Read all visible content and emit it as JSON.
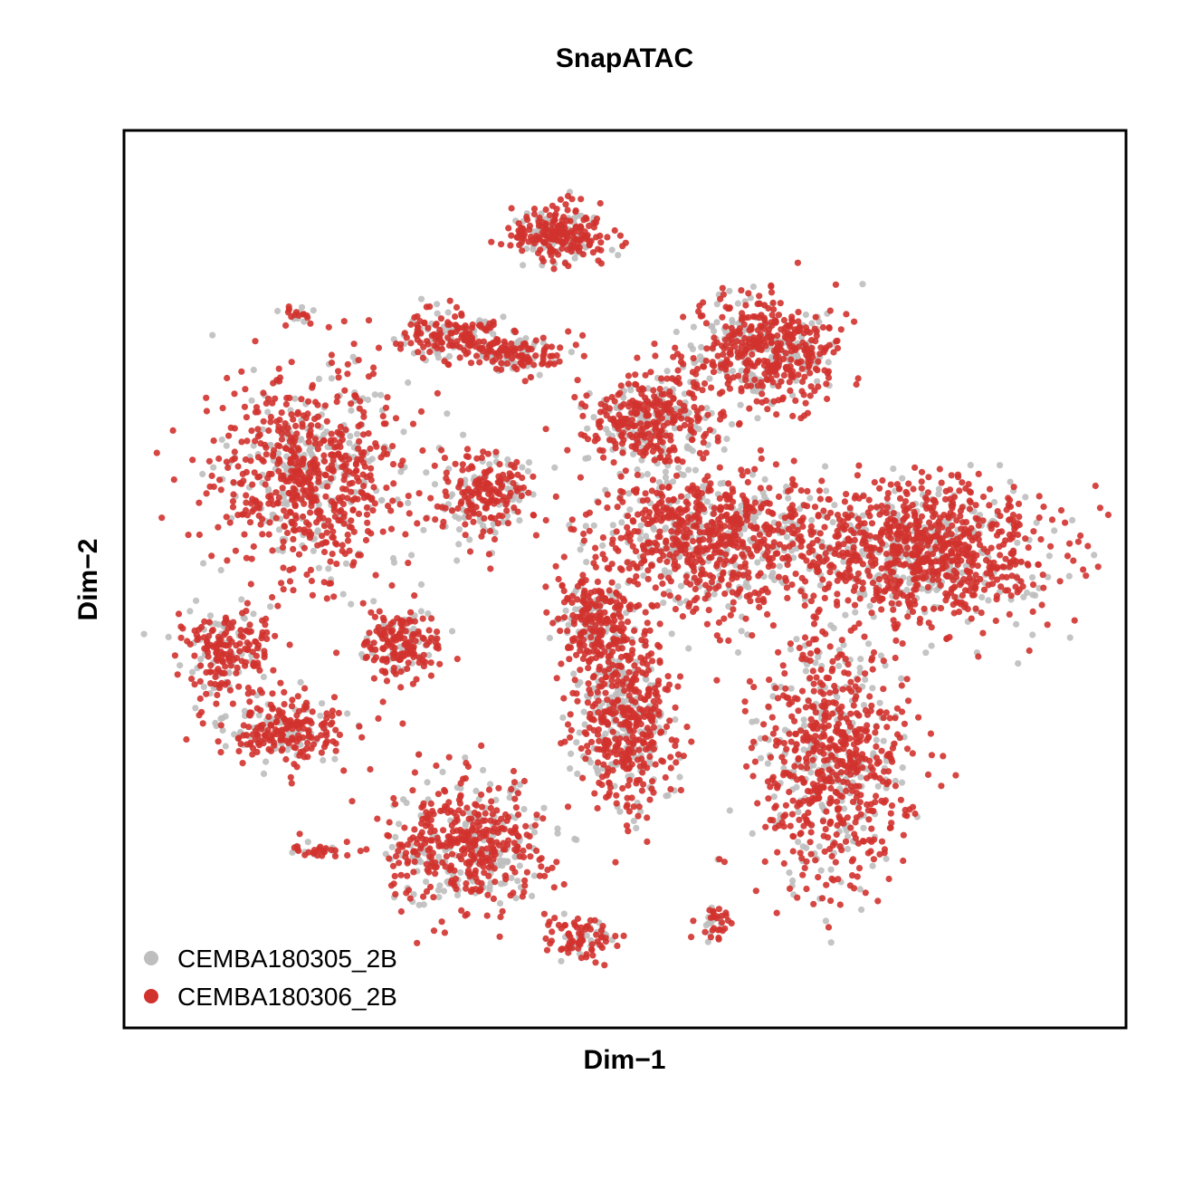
{
  "chart_data": {
    "type": "scatter",
    "title": "SnapATAC",
    "xlabel": "Dim−1",
    "ylabel": "Dim−2",
    "xlim": [
      0,
      100
    ],
    "ylim": [
      0,
      100
    ],
    "grid": false,
    "legend_position": "bottom-left",
    "series": [
      {
        "name": "CEMBA180305_2B",
        "color": "#bebebe"
      },
      {
        "name": "CEMBA180306_2B",
        "color": "#d2322d"
      }
    ],
    "clusters": [
      {
        "x": 43,
        "y": 92,
        "sx": 3.0,
        "sy": 2.0,
        "n": 260
      },
      {
        "x": 15,
        "y": 82,
        "sx": 0.9,
        "sy": 0.7,
        "n": 20
      },
      {
        "x": 31,
        "y": 79.5,
        "sx": 3.5,
        "sy": 1.5,
        "n": 160
      },
      {
        "x": 37.5,
        "y": 77.5,
        "sx": 3.0,
        "sy": 1.5,
        "n": 160
      },
      {
        "x": 65,
        "y": 78,
        "sx": 5.0,
        "sy": 3.8,
        "n": 520
      },
      {
        "x": 52.5,
        "y": 69,
        "sx": 4.0,
        "sy": 3.5,
        "n": 380
      },
      {
        "x": 16,
        "y": 62.5,
        "sx": 6.0,
        "sy": 7.0,
        "n": 780
      },
      {
        "x": 35,
        "y": 60,
        "sx": 3.0,
        "sy": 3.0,
        "n": 230
      },
      {
        "x": 59,
        "y": 55,
        "sx": 7.0,
        "sy": 5.0,
        "n": 820
      },
      {
        "x": 82,
        "y": 53.5,
        "sx": 8.0,
        "sy": 5.0,
        "n": 1050
      },
      {
        "x": 7,
        "y": 41,
        "sx": 3.0,
        "sy": 3.0,
        "n": 220
      },
      {
        "x": 26,
        "y": 42,
        "sx": 2.5,
        "sy": 2.5,
        "n": 200
      },
      {
        "x": 47,
        "y": 45,
        "sx": 2.5,
        "sy": 3.5,
        "n": 260
      },
      {
        "x": 50,
        "y": 33,
        "sx": 3.0,
        "sy": 6.0,
        "n": 550
      },
      {
        "x": 72.5,
        "y": 28,
        "sx": 4.5,
        "sy": 9.0,
        "n": 780
      },
      {
        "x": 13,
        "y": 31.5,
        "sx": 4.0,
        "sy": 2.5,
        "n": 250
      },
      {
        "x": 33,
        "y": 18,
        "sx": 5.0,
        "sy": 4.5,
        "n": 520
      },
      {
        "x": 16.5,
        "y": 17,
        "sx": 2.0,
        "sy": 0.5,
        "n": 30
      },
      {
        "x": 45,
        "y": 6.5,
        "sx": 2.0,
        "sy": 1.5,
        "n": 90
      },
      {
        "x": 59.5,
        "y": 8.5,
        "sx": 1.0,
        "sy": 1.2,
        "n": 40
      }
    ]
  }
}
